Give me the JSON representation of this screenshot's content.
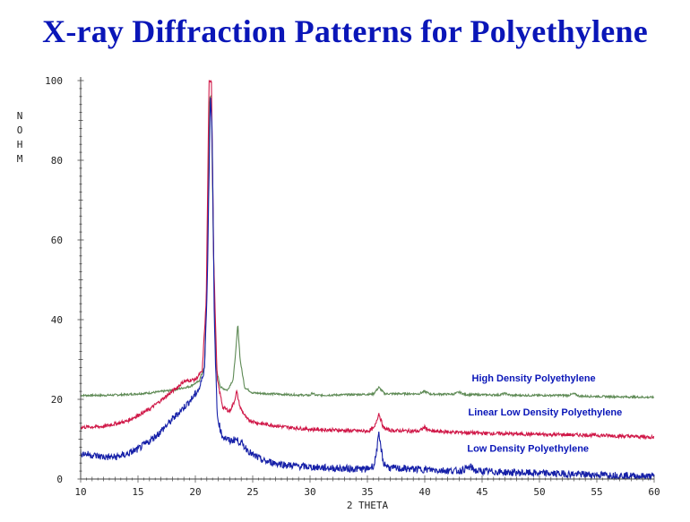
{
  "chart_data": {
    "type": "line",
    "title": "X-ray Diffraction Patterns for Polyethylene",
    "xlabel": "2 THETA",
    "ylabel": "NOHM",
    "xlim": [
      10,
      60
    ],
    "ylim": [
      0,
      100
    ],
    "xticks": [
      10,
      15,
      20,
      25,
      30,
      35,
      40,
      45,
      50,
      55,
      60
    ],
    "yticks": [
      0,
      20,
      40,
      60,
      80,
      100
    ],
    "series": [
      {
        "name": "High Density Polyethylene",
        "color": "#5e8a55",
        "points": [
          [
            10,
            21
          ],
          [
            12,
            21
          ],
          [
            14,
            21.2
          ],
          [
            16,
            21.6
          ],
          [
            18,
            22.3
          ],
          [
            19.5,
            23.2
          ],
          [
            20.3,
            24.5
          ],
          [
            20.8,
            28
          ],
          [
            21.05,
            55
          ],
          [
            21.25,
            96
          ],
          [
            21.4,
            96
          ],
          [
            21.55,
            62
          ],
          [
            21.8,
            28
          ],
          [
            22.2,
            23
          ],
          [
            22.8,
            22.3
          ],
          [
            23.3,
            25
          ],
          [
            23.55,
            33
          ],
          [
            23.7,
            39
          ],
          [
            23.9,
            30
          ],
          [
            24.3,
            23
          ],
          [
            25,
            21.6
          ],
          [
            28,
            21.2
          ],
          [
            30,
            21
          ],
          [
            30.2,
            21.6
          ],
          [
            30.5,
            21
          ],
          [
            35.5,
            21.3
          ],
          [
            36,
            23
          ],
          [
            36.5,
            21.4
          ],
          [
            39.5,
            21.4
          ],
          [
            40,
            22
          ],
          [
            40.5,
            21.3
          ],
          [
            42.5,
            21.3
          ],
          [
            43,
            21.8
          ],
          [
            43.5,
            21.2
          ],
          [
            46.5,
            21.1
          ],
          [
            47,
            21.5
          ],
          [
            47.5,
            21
          ],
          [
            52.5,
            21
          ],
          [
            53,
            21.4
          ],
          [
            53.5,
            20.8
          ],
          [
            60,
            20.5
          ]
        ]
      },
      {
        "name": "Linear Low Density Polyethylene",
        "color": "#d01848",
        "points": [
          [
            10,
            13
          ],
          [
            12,
            13.2
          ],
          [
            14,
            14.5
          ],
          [
            16,
            17.5
          ],
          [
            18,
            22
          ],
          [
            19,
            24.5
          ],
          [
            20,
            25
          ],
          [
            20.6,
            27
          ],
          [
            20.95,
            45
          ],
          [
            21.2,
            100
          ],
          [
            21.4,
            100
          ],
          [
            21.6,
            55
          ],
          [
            21.9,
            25
          ],
          [
            22.4,
            18
          ],
          [
            23,
            17
          ],
          [
            23.4,
            19.5
          ],
          [
            23.6,
            22
          ],
          [
            23.9,
            18
          ],
          [
            24.5,
            15
          ],
          [
            25.5,
            14
          ],
          [
            28,
            13
          ],
          [
            30,
            12.5
          ],
          [
            35,
            12
          ],
          [
            35.6,
            12.8
          ],
          [
            36,
            16.5
          ],
          [
            36.4,
            12.8
          ],
          [
            37,
            12.2
          ],
          [
            39.5,
            12
          ],
          [
            40,
            13
          ],
          [
            40.5,
            12
          ],
          [
            45,
            11.5
          ],
          [
            50,
            11.2
          ],
          [
            55,
            11
          ],
          [
            60,
            10.5
          ]
        ]
      },
      {
        "name": "Low Density Polyethylene",
        "color": "#1620a8",
        "points": [
          [
            10,
            6.5
          ],
          [
            11,
            6
          ],
          [
            12,
            5.5
          ],
          [
            13,
            5.5
          ],
          [
            14,
            6.2
          ],
          [
            15,
            7.5
          ],
          [
            16,
            9.5
          ],
          [
            17,
            12
          ],
          [
            18,
            15
          ],
          [
            19,
            18
          ],
          [
            19.8,
            20.5
          ],
          [
            20.4,
            23
          ],
          [
            20.8,
            28
          ],
          [
            21.05,
            50
          ],
          [
            21.3,
            96
          ],
          [
            21.45,
            90
          ],
          [
            21.65,
            40
          ],
          [
            21.9,
            16
          ],
          [
            22.3,
            11
          ],
          [
            23,
            9.5
          ],
          [
            23.5,
            10
          ],
          [
            24,
            9
          ],
          [
            25,
            6
          ],
          [
            26,
            4.5
          ],
          [
            28,
            3.5
          ],
          [
            30,
            3
          ],
          [
            33,
            2.6
          ],
          [
            35,
            2.5
          ],
          [
            35.6,
            3.5
          ],
          [
            36,
            11
          ],
          [
            36.4,
            4
          ],
          [
            37,
            2.7
          ],
          [
            40,
            2.4
          ],
          [
            43,
            2
          ],
          [
            44,
            3
          ],
          [
            44.5,
            2
          ],
          [
            48,
            1.6
          ],
          [
            52,
            1.3
          ],
          [
            56,
            1
          ],
          [
            60,
            0.6
          ]
        ]
      }
    ],
    "annotations": [
      {
        "text": "High Density Polyethylene",
        "x": 49.5,
        "y": 24.5
      },
      {
        "text": "Linear Low Density Polyethylene",
        "x": 50.5,
        "y": 16
      },
      {
        "text": "Low Density Polyethylene",
        "x": 49,
        "y": 6.8
      }
    ]
  }
}
